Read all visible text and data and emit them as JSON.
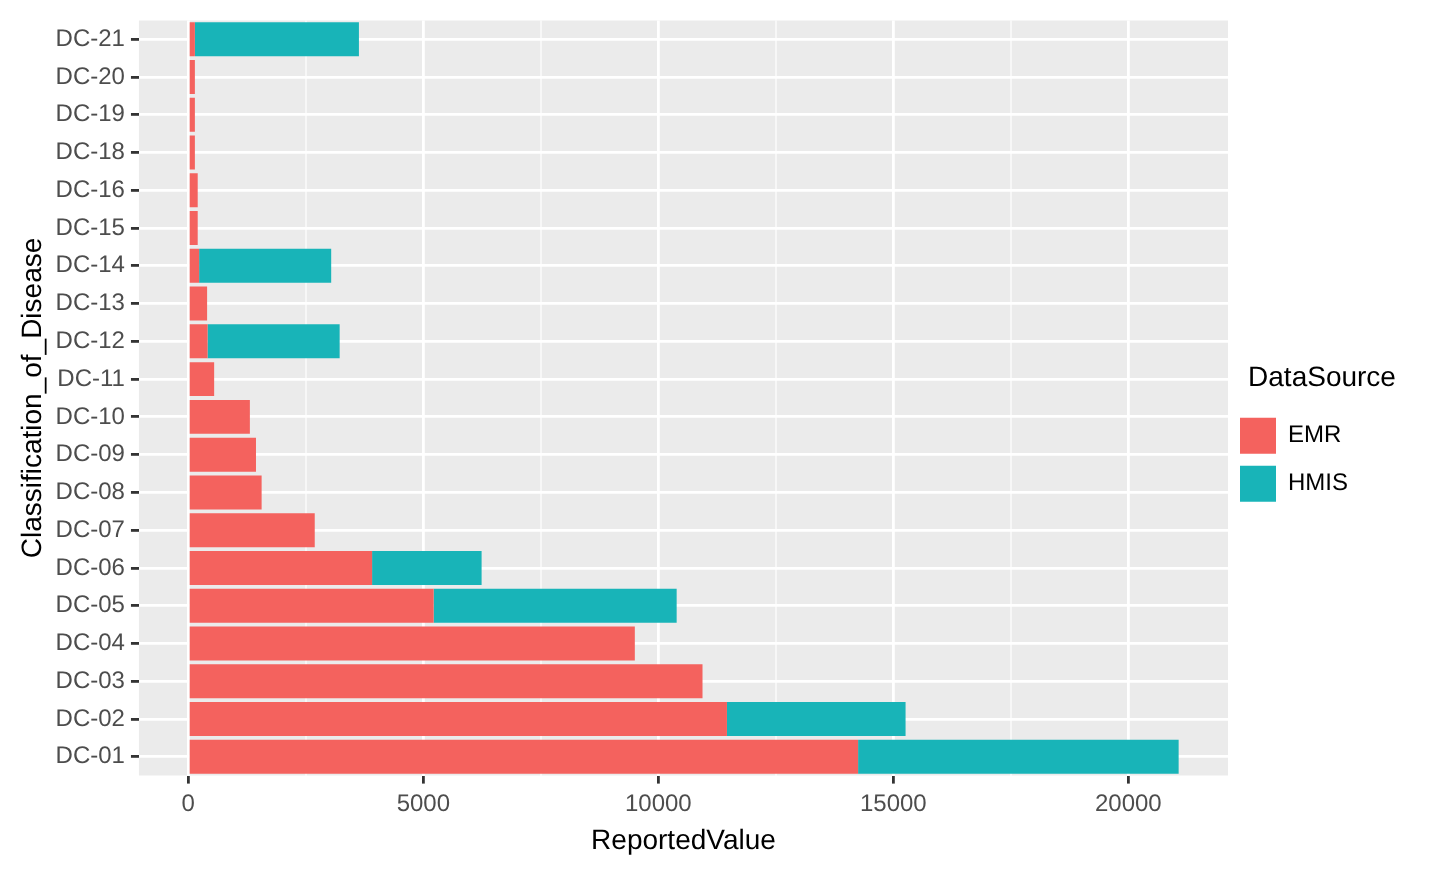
{
  "chart_data": {
    "type": "bar",
    "orientation": "horizontal",
    "stacked": true,
    "xlabel": "ReportedValue",
    "ylabel": "Classification_of_Disease",
    "legend_title": "DataSource",
    "categories": [
      "DC-21",
      "DC-20",
      "DC-19",
      "DC-18",
      "DC-16",
      "DC-15",
      "DC-14",
      "DC-13",
      "DC-12",
      "DC-11",
      "DC-10",
      "DC-09",
      "DC-08",
      "DC-07",
      "DC-06",
      "DC-05",
      "DC-04",
      "DC-03",
      "DC-02",
      "DC-01"
    ],
    "series": [
      {
        "name": "EMR",
        "color": "#f4625e",
        "values": [
          140,
          140,
          140,
          140,
          200,
          200,
          230,
          400,
          410,
          550,
          1310,
          1440,
          1560,
          2690,
          3910,
          5220,
          9500,
          10940,
          11460,
          14250
        ]
      },
      {
        "name": "HMIS",
        "color": "#18b4b8",
        "values": [
          3490,
          null,
          null,
          null,
          null,
          null,
          2810,
          null,
          2810,
          null,
          null,
          null,
          null,
          null,
          2330,
          5170,
          null,
          null,
          3800,
          6820
        ]
      }
    ],
    "xlim": [
      -1050,
      22120
    ],
    "xticks": [
      0,
      {
        "value": 2500,
        "label": null
      },
      5000,
      {
        "value": 7500,
        "label": null
      },
      10000,
      {
        "value": 12500,
        "label": null
      },
      15000,
      {
        "value": 17500,
        "label": null
      },
      20000
    ],
    "grid": true,
    "legend": "right"
  }
}
